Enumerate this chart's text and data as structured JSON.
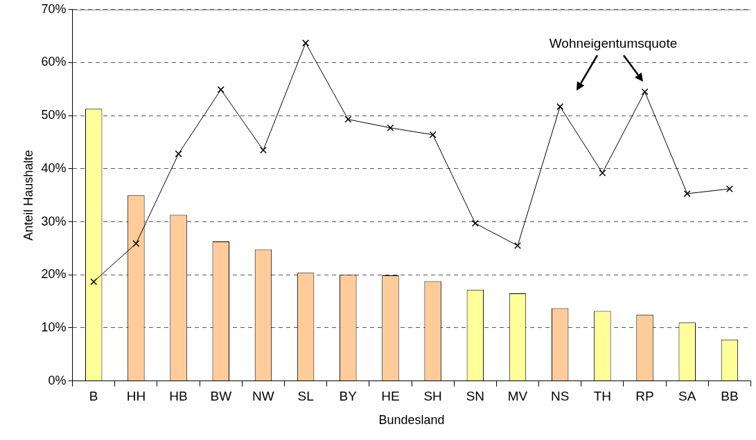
{
  "chart_data": {
    "type": "bar",
    "xlabel": "Bundesland",
    "ylabel": "Anteil Haushalte",
    "categories": [
      "B",
      "HH",
      "HB",
      "BW",
      "NW",
      "SL",
      "BY",
      "HE",
      "SH",
      "SN",
      "MV",
      "NS",
      "TH",
      "RP",
      "SA",
      "BB"
    ],
    "series": [
      {
        "colors": [
          "#ffff99",
          "#ffcc99",
          "#ffcc99",
          "#ffcc99",
          "#ffcc99",
          "#ffcc99",
          "#ffcc99",
          "#ffcc99",
          "#ffcc99",
          "#ffff99",
          "#ffff99",
          "#ffcc99",
          "#ffff99",
          "#ffcc99",
          "#ffff99",
          "#ffff99"
        ],
        "values": [
          51.3,
          35.0,
          31.3,
          26.3,
          24.8,
          20.4,
          20.0,
          19.9,
          18.8,
          17.2,
          16.5,
          13.7,
          13.2,
          12.5,
          11.0,
          7.8
        ]
      },
      {
        "type": "line",
        "color": "#000000",
        "marker": "cross",
        "values": [
          18.7,
          25.9,
          42.8,
          54.9,
          43.5,
          63.7,
          49.3,
          47.7,
          46.4,
          29.7,
          25.5,
          51.7,
          39.2,
          54.5,
          35.3,
          36.2
        ]
      }
    ],
    "ylim": [
      0,
      70
    ],
    "yticks": [
      {
        "value": 0,
        "label": "0%"
      },
      {
        "value": 10,
        "label": "10%"
      },
      {
        "value": 20,
        "label": "20%"
      },
      {
        "value": 30,
        "label": "30%"
      },
      {
        "value": 40,
        "label": "40%"
      },
      {
        "value": 50,
        "label": "50%"
      },
      {
        "value": 60,
        "label": "60%"
      },
      {
        "value": 70,
        "label": "70%"
      }
    ],
    "grid": "y",
    "legend": false,
    "annotations": [
      "Wohneigentumsquote"
    ]
  }
}
